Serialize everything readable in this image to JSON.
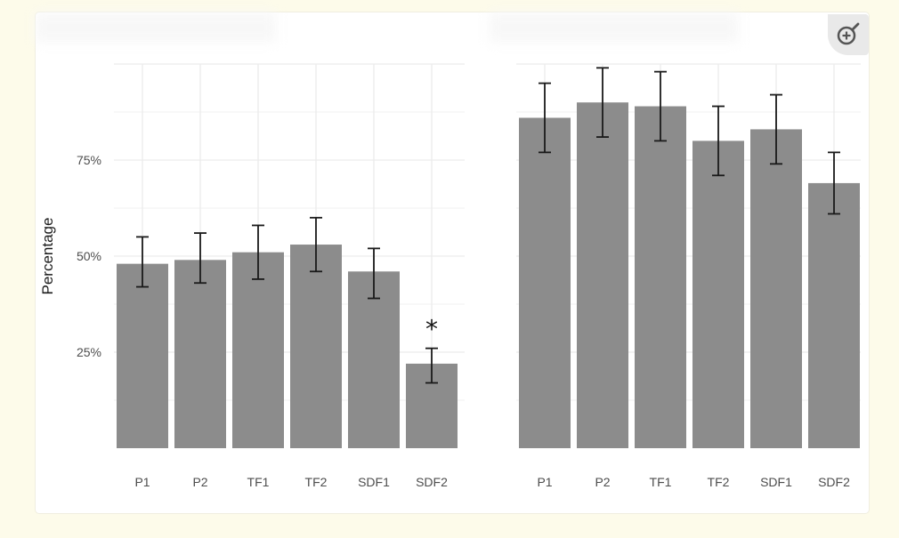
{
  "zoom_icon": "zoom-in-icon",
  "colors": {
    "bar": "#8c8c8c",
    "grid": "#ececec",
    "errorbar": "#1a1a1a",
    "background": "#fdfbea"
  },
  "chart_data": [
    {
      "type": "bar",
      "categories": [
        "P1",
        "P2",
        "TF1",
        "TF2",
        "SDF1",
        "SDF2"
      ],
      "values": [
        48,
        49,
        51,
        53,
        46,
        22
      ],
      "error_low": [
        42,
        43,
        44,
        46,
        39,
        17
      ],
      "error_high": [
        55,
        56,
        58,
        60,
        52,
        26
      ],
      "annotations": [
        {
          "category": "SDF2",
          "text": "*"
        }
      ],
      "ylabel": "Percentage",
      "yticks": [
        "25%",
        "50%",
        "75%"
      ],
      "ylim": [
        0,
        100
      ],
      "grid": true
    },
    {
      "type": "bar",
      "categories": [
        "P1",
        "P2",
        "TF1",
        "TF2",
        "SDF1",
        "SDF2"
      ],
      "values": [
        86,
        90,
        89,
        80,
        83,
        69
      ],
      "error_low": [
        77,
        81,
        80,
        71,
        74,
        61
      ],
      "error_high": [
        95,
        99,
        98,
        89,
        92,
        77
      ],
      "ylim": [
        0,
        100
      ],
      "grid": true
    }
  ]
}
